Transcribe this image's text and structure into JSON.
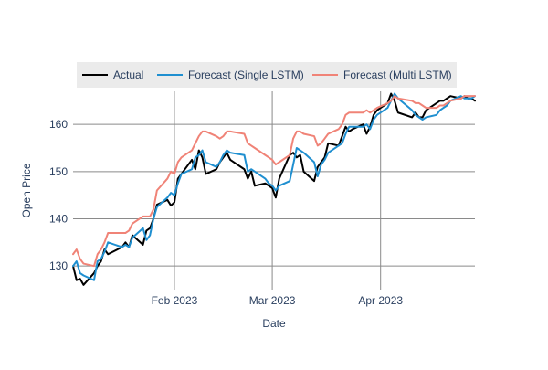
{
  "chart_data": {
    "type": "line",
    "title": "",
    "xlabel": "Date",
    "ylabel": "Open Price",
    "x_start": "2023-01-03",
    "x_range": [
      "2023-01-03",
      "2023-04-28"
    ],
    "x_ticks": [
      {
        "label": "Feb 2023",
        "date": "2023-02-01"
      },
      {
        "label": "Mar 2023",
        "date": "2023-03-01"
      },
      {
        "label": "Apr 2023",
        "date": "2023-04-01"
      }
    ],
    "y_ticks": [
      130,
      140,
      150,
      160
    ],
    "ylim": [
      125,
      167
    ],
    "grid": true,
    "legend": {
      "position": "top",
      "items": [
        {
          "name": "Actual",
          "color": "#000000"
        },
        {
          "name": "Forecast (Single LSTM)",
          "color": "#1f8fd0"
        },
        {
          "name": "Forecast (Multi LSTM)",
          "color": "#f08377"
        }
      ]
    },
    "series": [
      {
        "name": "Actual",
        "color": "#000000",
        "points": [
          [
            "2023-01-03",
            130
          ],
          [
            "2023-01-04",
            127
          ],
          [
            "2023-01-05",
            127.3
          ],
          [
            "2023-01-06",
            126
          ],
          [
            "2023-01-09",
            128.5
          ],
          [
            "2023-01-10",
            130
          ],
          [
            "2023-01-11",
            131
          ],
          [
            "2023-01-12",
            133.5
          ],
          [
            "2023-01-13",
            132.5
          ],
          [
            "2023-01-17",
            134
          ],
          [
            "2023-01-18",
            135
          ],
          [
            "2023-01-19",
            134
          ],
          [
            "2023-01-20",
            136.5
          ],
          [
            "2023-01-23",
            134.5
          ],
          [
            "2023-01-24",
            137.5
          ],
          [
            "2023-01-25",
            138
          ],
          [
            "2023-01-26",
            140
          ],
          [
            "2023-01-27",
            143
          ],
          [
            "2023-01-30",
            144
          ],
          [
            "2023-01-31",
            142.8
          ],
          [
            "2023-02-01",
            143.5
          ],
          [
            "2023-02-02",
            148.5
          ],
          [
            "2023-02-03",
            149.5
          ],
          [
            "2023-02-06",
            152.5
          ],
          [
            "2023-02-07",
            150.5
          ],
          [
            "2023-02-08",
            154.5
          ],
          [
            "2023-02-09",
            153
          ],
          [
            "2023-02-10",
            149.5
          ],
          [
            "2023-02-13",
            150.5
          ],
          [
            "2023-02-14",
            152
          ],
          [
            "2023-02-15",
            153
          ],
          [
            "2023-02-16",
            154
          ],
          [
            "2023-02-17",
            152.5
          ],
          [
            "2023-02-21",
            150.5
          ],
          [
            "2023-02-22",
            148.5
          ],
          [
            "2023-02-23",
            150
          ],
          [
            "2023-02-24",
            147
          ],
          [
            "2023-02-27",
            147.5
          ],
          [
            "2023-02-28",
            147
          ],
          [
            "2023-03-01",
            146.5
          ],
          [
            "2023-03-02",
            144.5
          ],
          [
            "2023-03-03",
            148.5
          ],
          [
            "2023-03-06",
            153.5
          ],
          [
            "2023-03-07",
            154
          ],
          [
            "2023-03-08",
            153
          ],
          [
            "2023-03-09",
            153.5
          ],
          [
            "2023-03-10",
            150
          ],
          [
            "2023-03-13",
            148
          ],
          [
            "2023-03-14",
            151
          ],
          [
            "2023-03-15",
            152
          ],
          [
            "2023-03-16",
            153
          ],
          [
            "2023-03-17",
            156
          ],
          [
            "2023-03-20",
            155.5
          ],
          [
            "2023-03-21",
            157.5
          ],
          [
            "2023-03-22",
            159.5
          ],
          [
            "2023-03-23",
            158.5
          ],
          [
            "2023-03-24",
            159
          ],
          [
            "2023-03-27",
            160
          ],
          [
            "2023-03-28",
            158
          ],
          [
            "2023-03-29",
            159.5
          ],
          [
            "2023-03-30",
            162
          ],
          [
            "2023-03-31",
            163
          ],
          [
            "2023-04-03",
            164.5
          ],
          [
            "2023-04-04",
            166.5
          ],
          [
            "2023-04-05",
            165
          ],
          [
            "2023-04-06",
            162.5
          ],
          [
            "2023-04-10",
            161.5
          ],
          [
            "2023-04-11",
            162.5
          ],
          [
            "2023-04-12",
            161.5
          ],
          [
            "2023-04-13",
            161.5
          ],
          [
            "2023-04-14",
            163
          ],
          [
            "2023-04-17",
            164.5
          ],
          [
            "2023-04-18",
            165
          ],
          [
            "2023-04-19",
            165
          ],
          [
            "2023-04-20",
            165.5
          ],
          [
            "2023-04-21",
            166
          ],
          [
            "2023-04-24",
            165.5
          ],
          [
            "2023-04-25",
            166
          ],
          [
            "2023-04-26",
            165.5
          ],
          [
            "2023-04-27",
            165.5
          ],
          [
            "2023-04-28",
            165
          ]
        ]
      },
      {
        "name": "Forecast (Single LSTM)",
        "color": "#1f8fd0",
        "points": [
          [
            "2023-01-03",
            130
          ],
          [
            "2023-01-04",
            131
          ],
          [
            "2023-01-05",
            128.5
          ],
          [
            "2023-01-06",
            128
          ],
          [
            "2023-01-09",
            127
          ],
          [
            "2023-01-10",
            131
          ],
          [
            "2023-01-11",
            131.5
          ],
          [
            "2023-01-12",
            133
          ],
          [
            "2023-01-13",
            135
          ],
          [
            "2023-01-17",
            134
          ],
          [
            "2023-01-18",
            134.5
          ],
          [
            "2023-01-19",
            134
          ],
          [
            "2023-01-20",
            136
          ],
          [
            "2023-01-23",
            138
          ],
          [
            "2023-01-24",
            135.5
          ],
          [
            "2023-01-25",
            136.5
          ],
          [
            "2023-01-26",
            140
          ],
          [
            "2023-01-27",
            142.5
          ],
          [
            "2023-01-30",
            144.5
          ],
          [
            "2023-01-31",
            145.5
          ],
          [
            "2023-02-01",
            145
          ],
          [
            "2023-02-02",
            147.5
          ],
          [
            "2023-02-03",
            149.5
          ],
          [
            "2023-02-06",
            150.5
          ],
          [
            "2023-02-07",
            153
          ],
          [
            "2023-02-08",
            153.5
          ],
          [
            "2023-02-09",
            154.5
          ],
          [
            "2023-02-10",
            152
          ],
          [
            "2023-02-13",
            151
          ],
          [
            "2023-02-14",
            152
          ],
          [
            "2023-02-15",
            153.5
          ],
          [
            "2023-02-16",
            154.5
          ],
          [
            "2023-02-17",
            154
          ],
          [
            "2023-02-21",
            153.5
          ],
          [
            "2023-02-22",
            150
          ],
          [
            "2023-02-23",
            150.5
          ],
          [
            "2023-02-24",
            150
          ],
          [
            "2023-02-27",
            148.5
          ],
          [
            "2023-02-28",
            147.5
          ],
          [
            "2023-03-01",
            147
          ],
          [
            "2023-03-02",
            146
          ],
          [
            "2023-03-03",
            147
          ],
          [
            "2023-03-06",
            148
          ],
          [
            "2023-03-07",
            151.5
          ],
          [
            "2023-03-08",
            155
          ],
          [
            "2023-03-09",
            154.5
          ],
          [
            "2023-03-10",
            154
          ],
          [
            "2023-03-13",
            152
          ],
          [
            "2023-03-14",
            149
          ],
          [
            "2023-03-15",
            151.5
          ],
          [
            "2023-03-16",
            152.5
          ],
          [
            "2023-03-17",
            154
          ],
          [
            "2023-03-20",
            155.5
          ],
          [
            "2023-03-21",
            156
          ],
          [
            "2023-03-22",
            158
          ],
          [
            "2023-03-23",
            159.5
          ],
          [
            "2023-03-24",
            159.5
          ],
          [
            "2023-03-27",
            159.5
          ],
          [
            "2023-03-28",
            160
          ],
          [
            "2023-03-29",
            159
          ],
          [
            "2023-03-30",
            161
          ],
          [
            "2023-03-31",
            162
          ],
          [
            "2023-04-03",
            163.5
          ],
          [
            "2023-04-04",
            165
          ],
          [
            "2023-04-05",
            166.5
          ],
          [
            "2023-04-06",
            165.5
          ],
          [
            "2023-04-10",
            163
          ],
          [
            "2023-04-11",
            162
          ],
          [
            "2023-04-12",
            161.5
          ],
          [
            "2023-04-13",
            161
          ],
          [
            "2023-04-14",
            161.5
          ],
          [
            "2023-04-17",
            162
          ],
          [
            "2023-04-18",
            163
          ],
          [
            "2023-04-19",
            163.5
          ],
          [
            "2023-04-20",
            164
          ],
          [
            "2023-04-21",
            165
          ],
          [
            "2023-04-24",
            166
          ],
          [
            "2023-04-25",
            165.5
          ],
          [
            "2023-04-26",
            165.5
          ],
          [
            "2023-04-27",
            165.5
          ],
          [
            "2023-04-28",
            166
          ]
        ]
      },
      {
        "name": "Forecast (Multi LSTM)",
        "color": "#f08377",
        "points": [
          [
            "2023-01-03",
            132.5
          ],
          [
            "2023-01-04",
            133.5
          ],
          [
            "2023-01-05",
            131.5
          ],
          [
            "2023-01-06",
            130.5
          ],
          [
            "2023-01-09",
            130
          ],
          [
            "2023-01-10",
            132.5
          ],
          [
            "2023-01-11",
            133.5
          ],
          [
            "2023-01-12",
            135
          ],
          [
            "2023-01-13",
            137
          ],
          [
            "2023-01-17",
            137
          ],
          [
            "2023-01-18",
            137
          ],
          [
            "2023-01-19",
            137.5
          ],
          [
            "2023-01-20",
            139
          ],
          [
            "2023-01-23",
            140.5
          ],
          [
            "2023-01-24",
            140.5
          ],
          [
            "2023-01-25",
            140.5
          ],
          [
            "2023-01-26",
            142
          ],
          [
            "2023-01-27",
            146
          ],
          [
            "2023-01-30",
            148.5
          ],
          [
            "2023-01-31",
            150
          ],
          [
            "2023-02-01",
            149.5
          ],
          [
            "2023-02-02",
            152
          ],
          [
            "2023-02-03",
            153
          ],
          [
            "2023-02-06",
            154.5
          ],
          [
            "2023-02-07",
            156
          ],
          [
            "2023-02-08",
            157.5
          ],
          [
            "2023-02-09",
            158.5
          ],
          [
            "2023-02-10",
            158.5
          ],
          [
            "2023-02-13",
            157.5
          ],
          [
            "2023-02-14",
            157
          ],
          [
            "2023-02-15",
            157.5
          ],
          [
            "2023-02-16",
            158.5
          ],
          [
            "2023-02-17",
            158.5
          ],
          [
            "2023-02-21",
            158
          ],
          [
            "2023-02-22",
            156
          ],
          [
            "2023-02-23",
            155.5
          ],
          [
            "2023-02-24",
            155
          ],
          [
            "2023-02-27",
            153.5
          ],
          [
            "2023-02-28",
            153
          ],
          [
            "2023-03-01",
            152.5
          ],
          [
            "2023-03-02",
            151.5
          ],
          [
            "2023-03-03",
            152
          ],
          [
            "2023-03-06",
            153.5
          ],
          [
            "2023-03-07",
            157
          ],
          [
            "2023-03-08",
            158.5
          ],
          [
            "2023-03-09",
            158.5
          ],
          [
            "2023-03-10",
            158
          ],
          [
            "2023-03-13",
            157.5
          ],
          [
            "2023-03-14",
            155.5
          ],
          [
            "2023-03-15",
            156
          ],
          [
            "2023-03-16",
            157
          ],
          [
            "2023-03-17",
            158
          ],
          [
            "2023-03-20",
            159
          ],
          [
            "2023-03-21",
            160
          ],
          [
            "2023-03-22",
            162
          ],
          [
            "2023-03-23",
            162.5
          ],
          [
            "2023-03-24",
            162.5
          ],
          [
            "2023-03-27",
            162.5
          ],
          [
            "2023-03-28",
            163
          ],
          [
            "2023-03-29",
            162.5
          ],
          [
            "2023-03-30",
            163
          ],
          [
            "2023-03-31",
            163.5
          ],
          [
            "2023-04-03",
            164.5
          ],
          [
            "2023-04-04",
            165
          ],
          [
            "2023-04-05",
            166
          ],
          [
            "2023-04-06",
            165.5
          ],
          [
            "2023-04-10",
            165
          ],
          [
            "2023-04-11",
            164.5
          ],
          [
            "2023-04-12",
            164.5
          ],
          [
            "2023-04-13",
            164
          ],
          [
            "2023-04-14",
            163.5
          ],
          [
            "2023-04-17",
            163.5
          ],
          [
            "2023-04-18",
            164
          ],
          [
            "2023-04-19",
            164
          ],
          [
            "2023-04-20",
            164.5
          ],
          [
            "2023-04-21",
            165
          ],
          [
            "2023-04-24",
            165.5
          ],
          [
            "2023-04-25",
            166
          ],
          [
            "2023-04-26",
            166
          ],
          [
            "2023-04-27",
            166
          ],
          [
            "2023-04-28",
            166
          ]
        ]
      }
    ]
  }
}
